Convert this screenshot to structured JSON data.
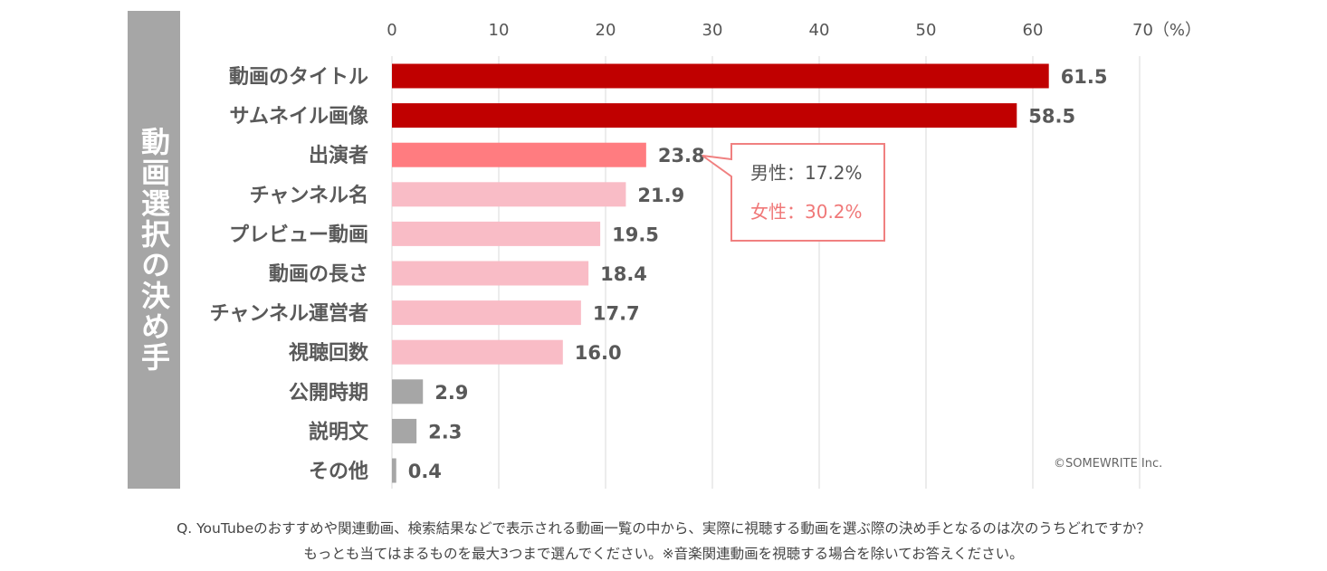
{
  "side_title": "動画選択の決め手",
  "footer": {
    "line1": "Q. YouTubeのおすすめや関連動画、検索結果などで表示される動画一覧の中から、実際に視聴する動画を選ぶ際の決め手となるのは次のうちどれですか？",
    "line2": "もっとも当てはまるものを最大3つまで選んでください。※音楽関連動画を視聴する場合を除いてお答えください。"
  },
  "copyright": "©SOMEWRITE Inc.",
  "callout": {
    "male": "男性：17.2%",
    "female": "女性：30.2%",
    "border_color": "#f08080",
    "female_color": "#f07878"
  },
  "chart_data": {
    "type": "bar",
    "orientation": "horizontal",
    "categories": [
      "動画のタイトル",
      "サムネイル画像",
      "出演者",
      "チャンネル名",
      "プレビュー動画",
      "動画の長さ",
      "チャンネル運営者",
      "視聴回数",
      "公開時期",
      "説明文",
      "その他"
    ],
    "values": [
      61.5,
      58.5,
      23.8,
      21.9,
      19.5,
      18.4,
      17.7,
      16.0,
      2.9,
      2.3,
      0.4
    ],
    "value_labels": [
      "61.5",
      "58.5",
      "23.8",
      "21.9",
      "19.5",
      "18.4",
      "17.7",
      "16.0",
      "2.9",
      "2.3",
      "0.4"
    ],
    "colors": [
      "#c00000",
      "#c00000",
      "#ff7c80",
      "#f9bcc6",
      "#f9bcc6",
      "#f9bcc6",
      "#f9bcc6",
      "#f9bcc6",
      "#a6a6a6",
      "#a6a6a6",
      "#a6a6a6"
    ],
    "xlim": [
      0,
      70
    ],
    "ticks": [
      0,
      10,
      20,
      30,
      40,
      50,
      60,
      70
    ],
    "tick_labels": [
      "0",
      "10",
      "20",
      "30",
      "40",
      "50",
      "60",
      "70（%）"
    ],
    "grid": true
  }
}
